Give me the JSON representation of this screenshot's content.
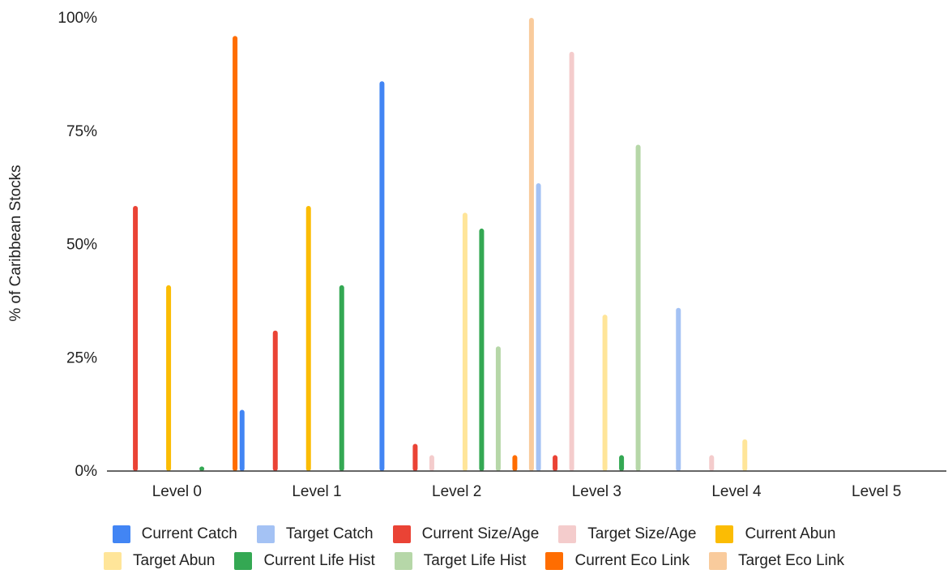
{
  "chart_data": {
    "type": "bar",
    "title": "",
    "xlabel": "",
    "ylabel": "% of Caribbean Stocks",
    "ylim": [
      0,
      100
    ],
    "yticks": [
      "0%",
      "25%",
      "50%",
      "75%",
      "100%"
    ],
    "grid": false,
    "legend_position": "bottom",
    "categories": [
      "Level 0",
      "Level 1",
      "Level 2",
      "Level 3",
      "Level 4",
      "Level 5"
    ],
    "series": [
      {
        "name": "Current Catch",
        "color": "#4285F4",
        "values": [
          0,
          13.5,
          86,
          0,
          0,
          0
        ]
      },
      {
        "name": "Target Catch",
        "color": "#A4C2F4",
        "values": [
          0,
          0,
          0,
          63.5,
          36,
          0
        ]
      },
      {
        "name": "Current Size/Age",
        "color": "#EA4335",
        "values": [
          58.5,
          31,
          6,
          3.5,
          0,
          0
        ]
      },
      {
        "name": "Target Size/Age",
        "color": "#F4CCCC",
        "values": [
          0,
          0,
          3.5,
          92.5,
          3.5,
          0
        ]
      },
      {
        "name": "Current Abun",
        "color": "#FBBC04",
        "values": [
          41,
          58.5,
          0,
          0,
          0,
          0
        ]
      },
      {
        "name": "Target Abun",
        "color": "#FFE599",
        "values": [
          0,
          0,
          57,
          34.5,
          7,
          0
        ]
      },
      {
        "name": "Current Life Hist",
        "color": "#34A853",
        "values": [
          1,
          41,
          53.5,
          3.5,
          0,
          0
        ]
      },
      {
        "name": "Target Life Hist",
        "color": "#B6D7A8",
        "values": [
          0,
          0,
          27.5,
          72,
          0,
          0
        ]
      },
      {
        "name": "Current Eco Link",
        "color": "#FF6D01",
        "values": [
          96,
          0,
          3.5,
          0,
          0,
          0
        ]
      },
      {
        "name": "Target Eco Link",
        "color": "#F9CB9C",
        "values": [
          0,
          0,
          100,
          0,
          0,
          0
        ]
      }
    ]
  }
}
